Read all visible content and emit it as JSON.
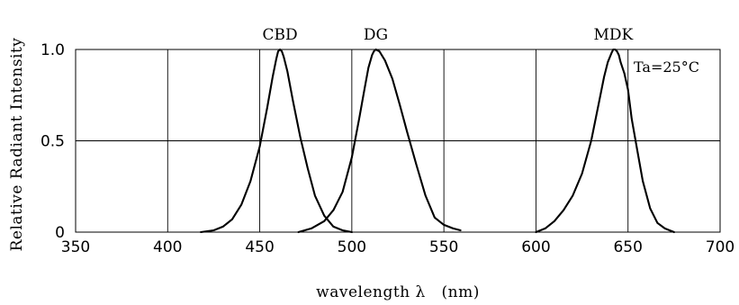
{
  "chart_data": {
    "type": "line",
    "title": "",
    "xlabel": "wavelength λ   (nm)",
    "ylabel": "Relative Radiant Intensity",
    "xlim": [
      350,
      700
    ],
    "ylim": [
      0,
      1.0
    ],
    "x_ticks": [
      "350",
      "400",
      "450",
      "500",
      "550",
      "600",
      "650",
      "700"
    ],
    "y_ticks": [
      "0",
      "0.5",
      "1.0"
    ],
    "grid": true,
    "annotation": "Ta=25°C",
    "series": [
      {
        "name": "CBD",
        "x": [
          418,
          425,
          430,
          435,
          440,
          445,
          450,
          454,
          457,
          459,
          460,
          461,
          462,
          463,
          465,
          468,
          472,
          476,
          480,
          485,
          490,
          495,
          500
        ],
        "y": [
          0.0,
          0.01,
          0.03,
          0.07,
          0.15,
          0.28,
          0.47,
          0.68,
          0.85,
          0.95,
          0.99,
          1.0,
          0.99,
          0.96,
          0.88,
          0.72,
          0.52,
          0.35,
          0.2,
          0.09,
          0.03,
          0.01,
          0.0
        ]
      },
      {
        "name": "DG",
        "x": [
          471,
          478,
          485,
          490,
          495,
          500,
          504,
          507,
          509,
          511,
          512,
          513,
          515,
          518,
          522,
          526,
          530,
          535,
          540,
          545,
          550,
          555,
          559
        ],
        "y": [
          0.0,
          0.02,
          0.06,
          0.12,
          0.22,
          0.41,
          0.62,
          0.79,
          0.9,
          0.97,
          0.99,
          1.0,
          0.99,
          0.94,
          0.84,
          0.7,
          0.55,
          0.37,
          0.2,
          0.08,
          0.04,
          0.02,
          0.01
        ]
      },
      {
        "name": "MDK",
        "x": [
          600,
          605,
          610,
          615,
          620,
          625,
          630,
          634,
          637,
          639,
          641,
          642,
          643,
          644,
          645,
          646,
          648,
          650,
          652,
          655,
          658,
          662,
          666,
          670,
          675
        ],
        "y": [
          0.0,
          0.02,
          0.06,
          0.12,
          0.2,
          0.32,
          0.5,
          0.7,
          0.85,
          0.93,
          0.98,
          1.0,
          1.0,
          0.99,
          0.97,
          0.93,
          0.87,
          0.78,
          0.62,
          0.45,
          0.28,
          0.13,
          0.05,
          0.02,
          0.0
        ]
      }
    ]
  }
}
